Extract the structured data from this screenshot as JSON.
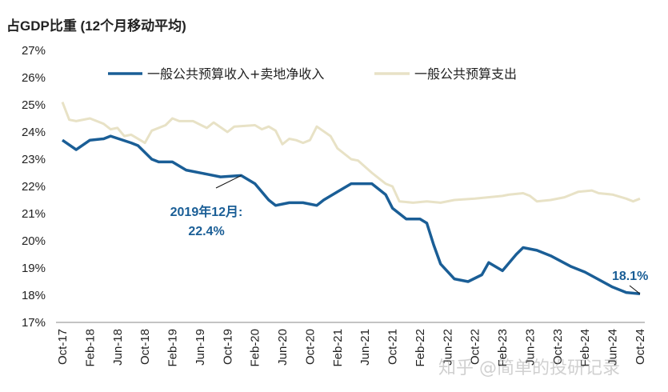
{
  "chart_data": {
    "type": "line",
    "title": "占GDP比重 (12个月移动平均)",
    "xlabel": "",
    "ylabel": "",
    "ylim": [
      17,
      27
    ],
    "yticks": [
      "17%",
      "18%",
      "19%",
      "20%",
      "21%",
      "22%",
      "23%",
      "24%",
      "25%",
      "26%",
      "27%"
    ],
    "xrange": [
      "2017-10",
      "2024-10"
    ],
    "xtick_labels": [
      "Oct-17",
      "Feb-18",
      "Jun-18",
      "Oct-18",
      "Feb-19",
      "Jun-19",
      "Oct-19",
      "Feb-20",
      "Jun-20",
      "Oct-20",
      "Feb-21",
      "Jun-21",
      "Oct-21",
      "Feb-22",
      "Jun-22",
      "Oct-22",
      "Feb-23",
      "Jun-23",
      "Oct-23",
      "Feb-24",
      "Jun-24",
      "Oct-24"
    ],
    "grid": false,
    "legend_position": "top",
    "series": [
      {
        "name": "一般公共预算收入+卖地净收入",
        "color": "#1a5e96",
        "points": [
          [
            "2017-10",
            23.7
          ],
          [
            "2017-12",
            23.35
          ],
          [
            "2018-02",
            23.7
          ],
          [
            "2018-04",
            23.75
          ],
          [
            "2018-05",
            23.85
          ],
          [
            "2018-08",
            23.6
          ],
          [
            "2018-09",
            23.5
          ],
          [
            "2018-11",
            23.0
          ],
          [
            "2018-12",
            22.9
          ],
          [
            "2019-02",
            22.9
          ],
          [
            "2019-04",
            22.6
          ],
          [
            "2019-07",
            22.45
          ],
          [
            "2019-09",
            22.35
          ],
          [
            "2019-12",
            22.4
          ],
          [
            "2020-02",
            22.1
          ],
          [
            "2020-04",
            21.5
          ],
          [
            "2020-05",
            21.3
          ],
          [
            "2020-07",
            21.4
          ],
          [
            "2020-09",
            21.4
          ],
          [
            "2020-11",
            21.3
          ],
          [
            "2020-12",
            21.5
          ],
          [
            "2021-02",
            21.8
          ],
          [
            "2021-04",
            22.1
          ],
          [
            "2021-07",
            22.1
          ],
          [
            "2021-09",
            21.7
          ],
          [
            "2021-10",
            21.2
          ],
          [
            "2021-12",
            20.8
          ],
          [
            "2022-02",
            20.8
          ],
          [
            "2022-03",
            20.65
          ],
          [
            "2022-04",
            19.85
          ],
          [
            "2022-05",
            19.15
          ],
          [
            "2022-07",
            18.6
          ],
          [
            "2022-09",
            18.5
          ],
          [
            "2022-11",
            18.75
          ],
          [
            "2022-12",
            19.2
          ],
          [
            "2023-02",
            18.9
          ],
          [
            "2023-04",
            19.5
          ],
          [
            "2023-05",
            19.75
          ],
          [
            "2023-07",
            19.65
          ],
          [
            "2023-09",
            19.45
          ],
          [
            "2023-12",
            19.05
          ],
          [
            "2024-02",
            18.85
          ],
          [
            "2024-06",
            18.3
          ],
          [
            "2024-08",
            18.1
          ],
          [
            "2024-10",
            18.05
          ]
        ]
      },
      {
        "name": "一般公共预算支出",
        "color": "#e8e2c6",
        "points": [
          [
            "2017-10",
            25.1
          ],
          [
            "2017-11",
            24.45
          ],
          [
            "2017-12",
            24.4
          ],
          [
            "2018-02",
            24.5
          ],
          [
            "2018-04",
            24.3
          ],
          [
            "2018-05",
            24.1
          ],
          [
            "2018-06",
            24.15
          ],
          [
            "2018-07",
            23.85
          ],
          [
            "2018-08",
            23.9
          ],
          [
            "2018-10",
            23.6
          ],
          [
            "2018-11",
            24.05
          ],
          [
            "2019-01",
            24.25
          ],
          [
            "2019-02",
            24.5
          ],
          [
            "2019-03",
            24.4
          ],
          [
            "2019-05",
            24.4
          ],
          [
            "2019-07",
            24.15
          ],
          [
            "2019-08",
            24.35
          ],
          [
            "2019-10",
            24.0
          ],
          [
            "2019-11",
            24.2
          ],
          [
            "2020-02",
            24.25
          ],
          [
            "2020-03",
            24.1
          ],
          [
            "2020-04",
            24.2
          ],
          [
            "2020-05",
            24.05
          ],
          [
            "2020-06",
            23.55
          ],
          [
            "2020-07",
            23.75
          ],
          [
            "2020-08",
            23.7
          ],
          [
            "2020-09",
            23.6
          ],
          [
            "2020-10",
            23.7
          ],
          [
            "2020-11",
            24.2
          ],
          [
            "2021-01",
            23.85
          ],
          [
            "2021-02",
            23.4
          ],
          [
            "2021-04",
            23.0
          ],
          [
            "2021-05",
            22.95
          ],
          [
            "2021-07",
            22.5
          ],
          [
            "2021-08",
            22.3
          ],
          [
            "2021-09",
            22.1
          ],
          [
            "2021-10",
            22.0
          ],
          [
            "2021-11",
            21.45
          ],
          [
            "2022-01",
            21.4
          ],
          [
            "2022-03",
            21.45
          ],
          [
            "2022-05",
            21.4
          ],
          [
            "2022-07",
            21.5
          ],
          [
            "2022-10",
            21.55
          ],
          [
            "2023-02",
            21.65
          ],
          [
            "2023-03",
            21.7
          ],
          [
            "2023-05",
            21.75
          ],
          [
            "2023-06",
            21.65
          ],
          [
            "2023-07",
            21.45
          ],
          [
            "2023-09",
            21.5
          ],
          [
            "2023-11",
            21.6
          ],
          [
            "2024-01",
            21.8
          ],
          [
            "2024-03",
            21.85
          ],
          [
            "2024-04",
            21.75
          ],
          [
            "2024-06",
            21.7
          ],
          [
            "2024-08",
            21.55
          ],
          [
            "2024-09",
            21.45
          ],
          [
            "2024-10",
            21.55
          ]
        ]
      }
    ],
    "annotations": [
      {
        "text_line1": "2019年12月:",
        "text_line2": "22.4%",
        "x": "2019-12",
        "y": 22.4
      },
      {
        "text_line1": "18.1%",
        "x": "2024-10",
        "y": 18.05
      }
    ]
  },
  "watermark": "知乎 @简单的投研记录"
}
